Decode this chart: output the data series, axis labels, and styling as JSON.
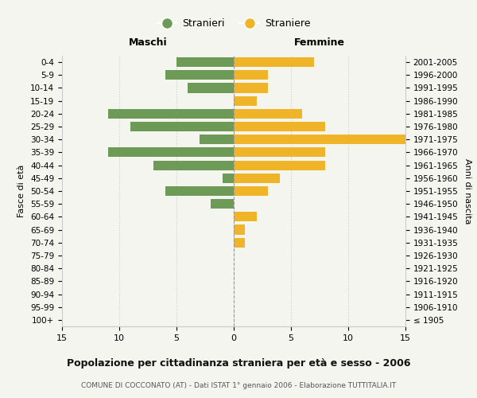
{
  "age_groups": [
    "100+",
    "95-99",
    "90-94",
    "85-89",
    "80-84",
    "75-79",
    "70-74",
    "65-69",
    "60-64",
    "55-59",
    "50-54",
    "45-49",
    "40-44",
    "35-39",
    "30-34",
    "25-29",
    "20-24",
    "15-19",
    "10-14",
    "5-9",
    "0-4"
  ],
  "birth_years": [
    "≤ 1905",
    "1906-1910",
    "1911-1915",
    "1916-1920",
    "1921-1925",
    "1926-1930",
    "1931-1935",
    "1936-1940",
    "1941-1945",
    "1946-1950",
    "1951-1955",
    "1956-1960",
    "1961-1965",
    "1966-1970",
    "1971-1975",
    "1976-1980",
    "1981-1985",
    "1986-1990",
    "1991-1995",
    "1996-2000",
    "2001-2005"
  ],
  "maschi": [
    0,
    0,
    0,
    0,
    0,
    0,
    0,
    0,
    0,
    2,
    6,
    1,
    7,
    11,
    3,
    9,
    11,
    0,
    4,
    6,
    5
  ],
  "femmine": [
    0,
    0,
    0,
    0,
    0,
    0,
    1,
    1,
    2,
    0,
    3,
    4,
    8,
    8,
    15,
    8,
    6,
    2,
    3,
    3,
    7
  ],
  "maschi_color": "#6d9b57",
  "femmine_color": "#f0b429",
  "background_color": "#f5f5f0",
  "grid_color": "#cccccc",
  "title": "Popolazione per cittadinanza straniera per età e sesso - 2006",
  "subtitle": "COMUNE DI COCCONATO (AT) - Dati ISTAT 1° gennaio 2006 - Elaborazione TUTTITALIA.IT",
  "xlabel_maschi": "Maschi",
  "xlabel_femmine": "Femmine",
  "ylabel_left": "Fasce di età",
  "ylabel_right": "Anni di nascita",
  "legend_maschi": "Stranieri",
  "legend_femmine": "Straniere",
  "xlim": 15,
  "xticks": [
    -15,
    -10,
    -5,
    0,
    5,
    10,
    15
  ],
  "xticklabels": [
    "15",
    "10",
    "5",
    "0",
    "5",
    "10",
    "15"
  ]
}
